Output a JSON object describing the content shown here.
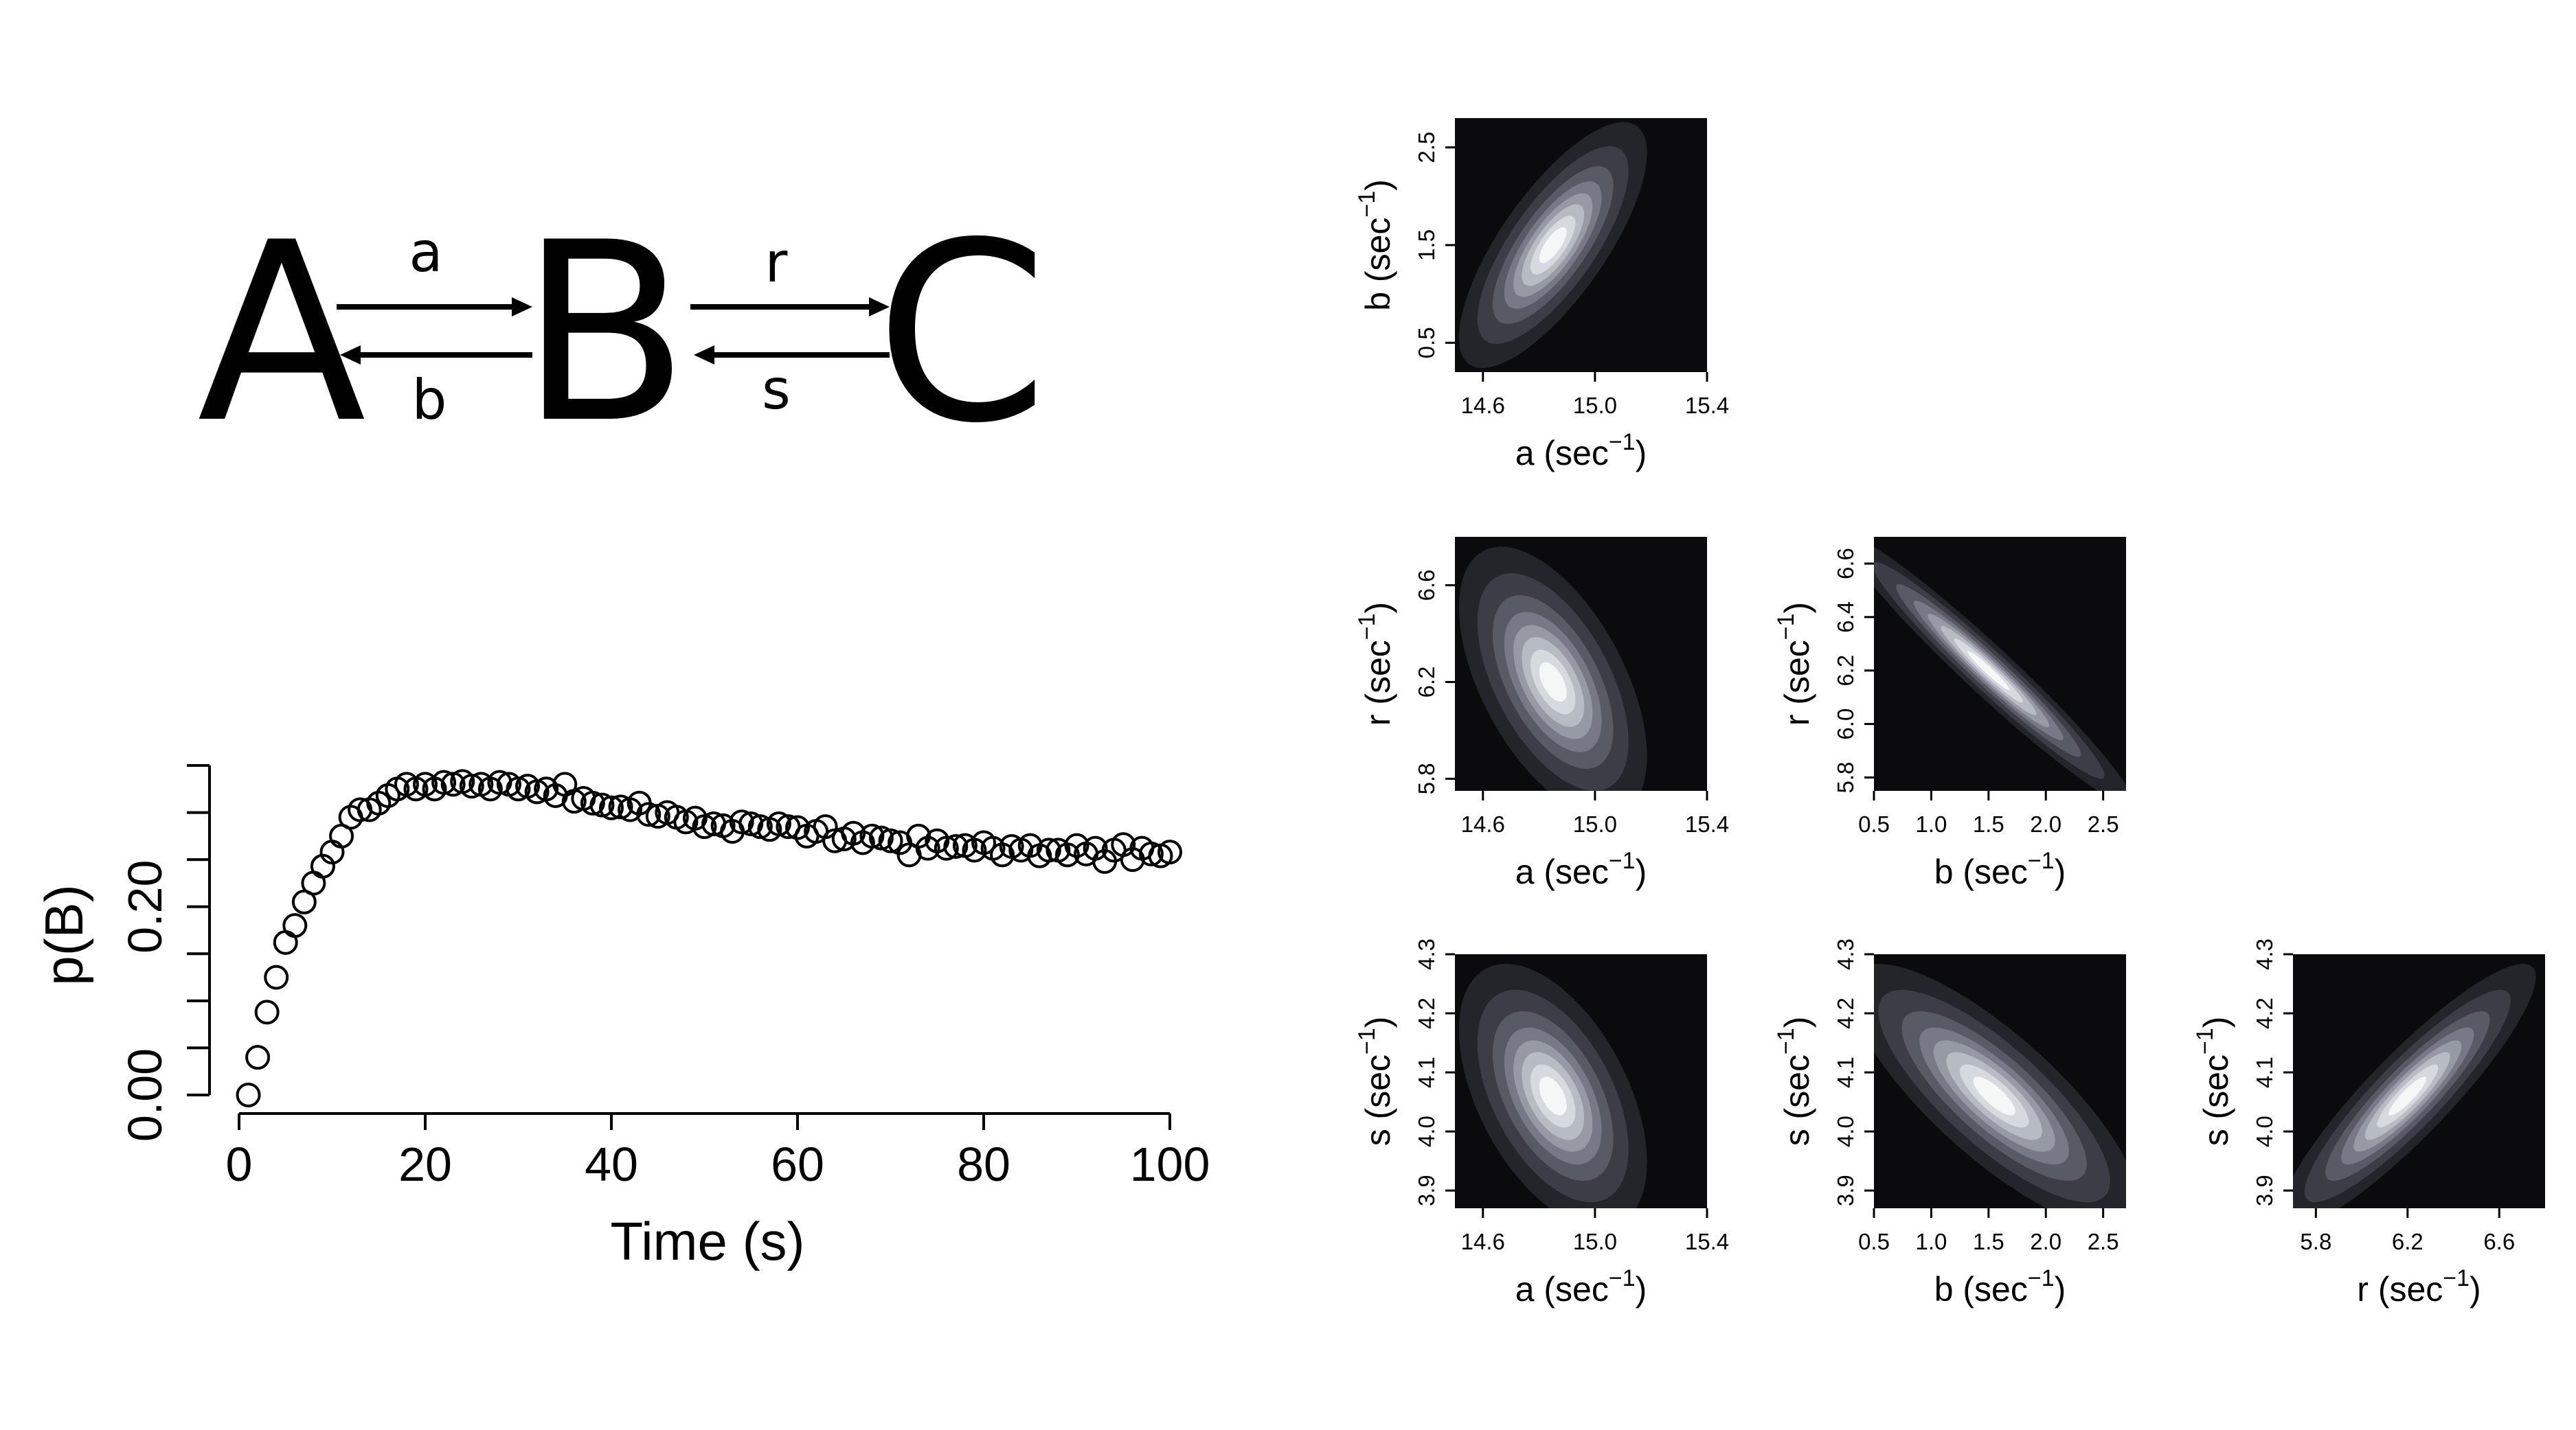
{
  "reaction": {
    "species": [
      "A",
      "B",
      "C"
    ],
    "rates": [
      {
        "forward": "a",
        "backward": "b"
      },
      {
        "forward": "r",
        "backward": "s"
      }
    ]
  },
  "chart_data": [
    {
      "type": "scatter",
      "xlabel": "Time (s)",
      "ylabel": "p(B)",
      "xlim": [
        0,
        100
      ],
      "ylim": [
        0,
        0.35
      ],
      "xticks": [
        "0",
        "20",
        "40",
        "60",
        "80",
        "100"
      ],
      "yticks_labeled": [
        "0.00",
        "0.20"
      ],
      "yticks_all": [
        0,
        0.05,
        0.1,
        0.15,
        0.2,
        0.25,
        0.3,
        0.35
      ],
      "marker": "open-circle",
      "x": [
        1,
        2,
        3,
        4,
        5,
        6,
        7,
        8,
        9,
        10,
        11,
        12,
        13,
        14,
        15,
        16,
        17,
        18,
        19,
        20,
        21,
        22,
        23,
        24,
        25,
        26,
        27,
        28,
        29,
        30,
        31,
        32,
        33,
        34,
        35,
        36,
        37,
        38,
        39,
        40,
        41,
        42,
        43,
        44,
        45,
        46,
        47,
        48,
        49,
        50,
        51,
        52,
        53,
        54,
        55,
        56,
        57,
        58,
        59,
        60,
        61,
        62,
        63,
        64,
        65,
        66,
        67,
        68,
        69,
        70,
        71,
        72,
        73,
        74,
        75,
        76,
        77,
        78,
        79,
        80,
        81,
        82,
        83,
        84,
        85,
        86,
        87,
        88,
        89,
        90,
        91,
        92,
        93,
        94,
        95,
        96,
        97,
        98,
        99,
        100
      ],
      "y": [
        0.0,
        0.04,
        0.088,
        0.125,
        0.162,
        0.18,
        0.205,
        0.225,
        0.243,
        0.258,
        0.275,
        0.295,
        0.303,
        0.303,
        0.31,
        0.318,
        0.325,
        0.33,
        0.325,
        0.33,
        0.325,
        0.332,
        0.33,
        0.333,
        0.328,
        0.33,
        0.325,
        0.332,
        0.33,
        0.325,
        0.328,
        0.322,
        0.325,
        0.318,
        0.33,
        0.312,
        0.315,
        0.31,
        0.308,
        0.305,
        0.306,
        0.303,
        0.31,
        0.298,
        0.296,
        0.3,
        0.295,
        0.29,
        0.294,
        0.285,
        0.288,
        0.286,
        0.28,
        0.29,
        0.288,
        0.285,
        0.282,
        0.288,
        0.285,
        0.284,
        0.275,
        0.28,
        0.285,
        0.27,
        0.272,
        0.278,
        0.268,
        0.275,
        0.273,
        0.27,
        0.268,
        0.255,
        0.275,
        0.262,
        0.27,
        0.262,
        0.264,
        0.265,
        0.26,
        0.268,
        0.262,
        0.255,
        0.264,
        0.26,
        0.265,
        0.254,
        0.26,
        0.26,
        0.255,
        0.265,
        0.256,
        0.262,
        0.248,
        0.26,
        0.266,
        0.25,
        0.262,
        0.256,
        0.254,
        0.258
      ]
    },
    {
      "type": "heatmap",
      "subtype": "density-contour",
      "xlabel_base": "a (sec",
      "ylabel_base": "b (sec",
      "label_exp": "−1",
      "label_close": ")",
      "xlim": [
        14.5,
        15.4
      ],
      "ylim": [
        0.2,
        2.8
      ],
      "xticks": [
        "14.6",
        "15.0",
        "15.4"
      ],
      "yticks": [
        "0.5",
        "1.5",
        "2.5"
      ],
      "center": [
        14.85,
        1.5
      ],
      "sd": [
        0.12,
        0.45
      ],
      "correlation": 0.75,
      "grid": false,
      "colors": {
        "background": "#0b0b0d",
        "peak": "#ffffff"
      }
    },
    {
      "type": "heatmap",
      "subtype": "density-contour",
      "xlabel_base": "a (sec",
      "ylabel_base": "r (sec",
      "label_exp": "−1",
      "label_close": ")",
      "xlim": [
        14.5,
        15.4
      ],
      "ylim": [
        5.75,
        6.8
      ],
      "xticks": [
        "14.6",
        "15.0",
        "15.4"
      ],
      "yticks": [
        "5.8",
        "6.2",
        "6.6"
      ],
      "center": [
        14.85,
        6.2
      ],
      "sd": [
        0.12,
        0.2
      ],
      "correlation": -0.55,
      "grid": false,
      "colors": {
        "background": "#0b0b0d",
        "peak": "#ffffff"
      }
    },
    {
      "type": "heatmap",
      "subtype": "density-contour",
      "xlabel_base": "b (sec",
      "ylabel_base": "r (sec",
      "label_exp": "−1",
      "label_close": ")",
      "xlim": [
        0.5,
        2.7
      ],
      "ylim": [
        5.75,
        6.7
      ],
      "xticks": [
        "0.5",
        "1.0",
        "1.5",
        "2.0",
        "2.5"
      ],
      "yticks": [
        "5.8",
        "6.0",
        "6.2",
        "6.4",
        "6.6"
      ],
      "center": [
        1.5,
        6.2
      ],
      "sd": [
        0.45,
        0.18
      ],
      "correlation": -0.97,
      "grid": false,
      "colors": {
        "background": "#0b0b0d",
        "peak": "#ffffff"
      }
    },
    {
      "type": "heatmap",
      "subtype": "density-contour",
      "xlabel_base": "a (sec",
      "ylabel_base": "s (sec",
      "label_exp": "−1",
      "label_close": ")",
      "xlim": [
        14.5,
        15.4
      ],
      "ylim": [
        3.87,
        4.3
      ],
      "xticks": [
        "14.6",
        "15.0",
        "15.4"
      ],
      "yticks": [
        "3.9",
        "4.0",
        "4.1",
        "4.2",
        "4.3"
      ],
      "center": [
        14.85,
        4.06
      ],
      "sd": [
        0.12,
        0.08
      ],
      "correlation": -0.5,
      "grid": false,
      "colors": {
        "background": "#0b0b0d",
        "peak": "#ffffff"
      }
    },
    {
      "type": "heatmap",
      "subtype": "density-contour",
      "xlabel_base": "b (sec",
      "ylabel_base": "s (sec",
      "label_exp": "−1",
      "label_close": ")",
      "xlim": [
        0.5,
        2.7
      ],
      "ylim": [
        3.87,
        4.3
      ],
      "xticks": [
        "0.5",
        "1.0",
        "1.5",
        "2.0",
        "2.5"
      ],
      "yticks": [
        "3.9",
        "4.0",
        "4.1",
        "4.2",
        "4.3"
      ],
      "center": [
        1.55,
        4.06
      ],
      "sd": [
        0.45,
        0.08
      ],
      "correlation": -0.8,
      "grid": false,
      "colors": {
        "background": "#0b0b0d",
        "peak": "#ffffff"
      }
    },
    {
      "type": "heatmap",
      "subtype": "density-contour",
      "xlabel_base": "r (sec",
      "ylabel_base": "s (sec",
      "label_exp": "−1",
      "label_close": ")",
      "xlim": [
        5.7,
        6.8
      ],
      "ylim": [
        3.87,
        4.3
      ],
      "xticks": [
        "5.8",
        "6.2",
        "6.6"
      ],
      "yticks": [
        "3.9",
        "4.0",
        "4.1",
        "4.2",
        "4.3"
      ],
      "center": [
        6.2,
        4.06
      ],
      "sd": [
        0.2,
        0.08
      ],
      "correlation": 0.9,
      "grid": false,
      "colors": {
        "background": "#0b0b0d",
        "peak": "#ffffff"
      }
    }
  ]
}
